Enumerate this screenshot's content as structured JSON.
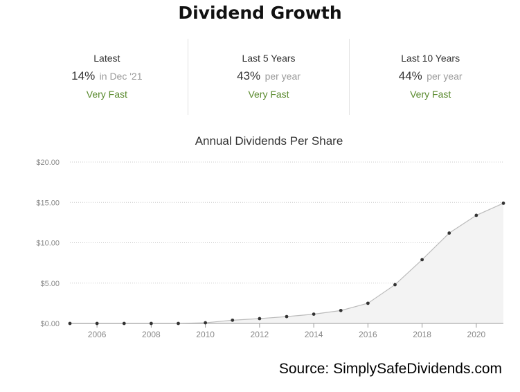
{
  "title": "Dividend Growth",
  "stats": [
    {
      "label": "Latest",
      "value": "14%",
      "suffix": "in Dec '21",
      "rating": "Very Fast"
    },
    {
      "label": "Last 5 Years",
      "value": "43%",
      "suffix": "per year",
      "rating": "Very Fast"
    },
    {
      "label": "Last 10 Years",
      "value": "44%",
      "suffix": "per year",
      "rating": "Very Fast"
    }
  ],
  "source": "Source: SimplySafeDividends.com",
  "colors": {
    "accent_green": "#5a8a2e",
    "line": "#bbbbbb",
    "area": "#f3f3f3",
    "point": "#333333"
  },
  "chart_data": {
    "type": "area",
    "title": "Annual Dividends Per Share",
    "xlabel": "",
    "ylabel": "",
    "x": [
      2005,
      2006,
      2007,
      2008,
      2009,
      2010,
      2011,
      2012,
      2013,
      2014,
      2015,
      2016,
      2017,
      2018,
      2019,
      2020,
      2021
    ],
    "values": [
      0,
      0,
      0,
      0,
      0,
      0.08,
      0.4,
      0.6,
      0.85,
      1.15,
      1.6,
      2.5,
      4.8,
      7.9,
      11.2,
      13.4,
      14.9
    ],
    "xticks": [
      2006,
      2008,
      2010,
      2012,
      2014,
      2016,
      2018,
      2020
    ],
    "xtick_labels": [
      "2006",
      "2008",
      "2010",
      "2012",
      "2014",
      "2016",
      "2018",
      "2020"
    ],
    "yticks": [
      0,
      5,
      10,
      15,
      20
    ],
    "ytick_labels": [
      "$0.00",
      "$5.00",
      "$10.00",
      "$15.00",
      "$20.00"
    ],
    "xlim": [
      2005,
      2021
    ],
    "ylim": [
      0,
      20
    ],
    "grid": true,
    "legend": "none"
  }
}
